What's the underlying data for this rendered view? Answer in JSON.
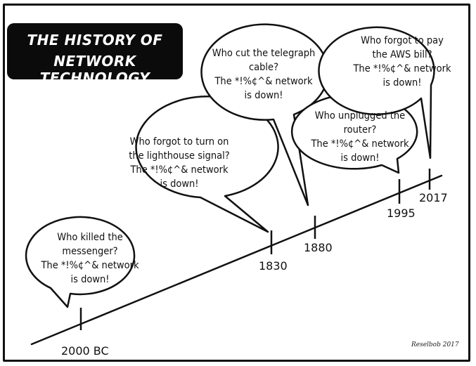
{
  "title": {
    "line1": "THE HISTORY OF",
    "line2": "NETWORK TECHNOLOGY"
  },
  "bubbles": [
    {
      "lines": [
        "Who killed the",
        "messenger?",
        "The *!%¢^& network",
        "is down!"
      ]
    },
    {
      "lines": [
        "Who forgot to turn on",
        "the lighthouse signal?",
        "The *!%¢^& network",
        "is down!"
      ]
    },
    {
      "lines": [
        "Who cut the telegraph",
        "cable?",
        "The *!%¢^& network",
        "is down!"
      ]
    },
    {
      "lines": [
        "Who unplugged the",
        "router?",
        "The *!%¢^& network",
        "is down!"
      ]
    },
    {
      "lines": [
        "Who forgot to pay",
        "the AWS bill?",
        "The *!%¢^& network",
        "is down!"
      ]
    }
  ],
  "years": [
    "2000 BC",
    "1830",
    "1880",
    "1995",
    "2017"
  ],
  "signature": "Reselbob 2017",
  "colors": {
    "ink": "#111111",
    "title_bg": "#0b0b0b",
    "title_text": "#ffffff"
  }
}
